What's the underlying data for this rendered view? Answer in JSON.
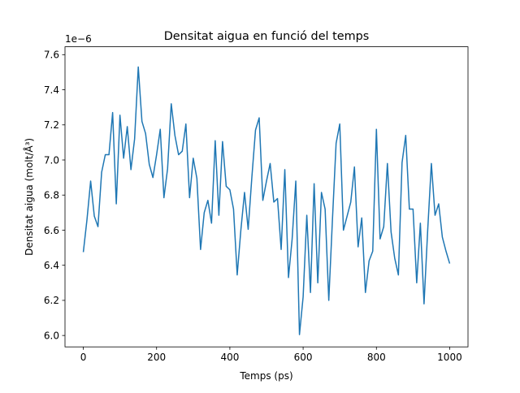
{
  "chart_data": {
    "type": "line",
    "title": "Densitat aigua en funció del temps",
    "xlabel": "Temps (ps)",
    "ylabel": "Densitat aigua (molt/Å³)",
    "offset_label": "1e−6",
    "xlim": [
      -50,
      1050
    ],
    "ylim": [
      5.935,
      7.645
    ],
    "x_ticks": [
      0,
      200,
      400,
      600,
      800,
      1000
    ],
    "y_ticks": [
      6.0,
      6.2,
      6.4,
      6.6,
      6.8,
      7.0,
      7.2,
      7.4,
      7.6
    ],
    "x_tick_labels": [
      "0",
      "200",
      "400",
      "600",
      "800",
      "1000"
    ],
    "y_tick_labels": [
      "6.0",
      "6.2",
      "6.4",
      "6.6",
      "6.8",
      "7.0",
      "7.2",
      "7.4",
      "7.6"
    ],
    "grid": false,
    "legend": "none",
    "color": "#1f77b4",
    "series": [
      {
        "x": [
          0,
          10,
          20,
          30,
          40,
          50,
          60,
          70,
          80,
          90,
          100,
          110,
          120,
          130,
          140,
          150,
          160,
          170,
          180,
          190,
          200,
          210,
          220,
          230,
          240,
          250,
          260,
          270,
          280,
          290,
          300,
          310,
          320,
          330,
          340,
          350,
          360,
          370,
          380,
          390,
          400,
          410,
          420,
          430,
          440,
          450,
          460,
          470,
          480,
          490,
          500,
          510,
          520,
          530,
          540,
          550,
          560,
          570,
          580,
          590,
          600,
          610,
          620,
          630,
          640,
          650,
          660,
          670,
          680,
          690,
          700,
          710,
          720,
          730,
          740,
          750,
          760,
          770,
          780,
          790,
          800,
          810,
          820,
          830,
          840,
          850,
          860,
          870,
          880,
          890,
          900,
          910,
          920,
          930,
          940,
          950,
          960,
          970,
          980,
          990,
          1000
        ],
        "values": [
          6.475,
          6.66,
          6.88,
          6.68,
          6.62,
          6.93,
          7.03,
          7.03,
          7.27,
          6.75,
          7.255,
          7.01,
          7.19,
          6.945,
          7.12,
          7.53,
          7.22,
          7.15,
          6.975,
          6.9,
          7.03,
          7.175,
          6.785,
          6.95,
          7.32,
          7.14,
          7.03,
          7.05,
          7.205,
          6.785,
          7.01,
          6.895,
          6.49,
          6.7,
          6.77,
          6.64,
          7.11,
          6.685,
          7.105,
          6.85,
          6.83,
          6.72,
          6.345,
          6.6,
          6.815,
          6.605,
          6.9,
          7.17,
          7.24,
          6.77,
          6.88,
          6.98,
          6.76,
          6.78,
          6.49,
          6.945,
          6.33,
          6.55,
          6.88,
          6.005,
          6.22,
          6.685,
          6.245,
          6.865,
          6.3,
          6.815,
          6.72,
          6.2,
          6.66,
          7.095,
          7.205,
          6.6,
          6.68,
          6.76,
          6.96,
          6.505,
          6.67,
          6.245,
          6.425,
          6.48,
          7.175,
          6.55,
          6.62,
          6.98,
          6.59,
          6.44,
          6.345,
          6.985,
          7.14,
          6.72,
          6.72,
          6.3,
          6.64,
          6.18,
          6.6,
          6.98,
          6.685,
          6.75,
          6.56,
          6.48,
          6.41
        ]
      }
    ]
  }
}
